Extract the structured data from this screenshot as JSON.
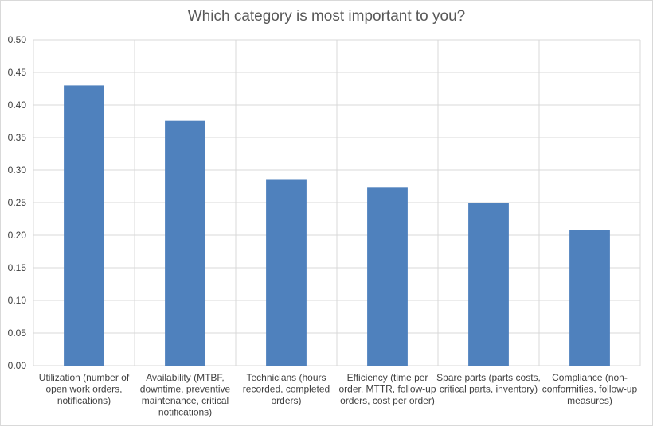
{
  "chart_data": {
    "type": "bar",
    "title": "Which category is most important to you?",
    "categories": [
      [
        "Utilization (number of",
        "open work orders,",
        "notifications)"
      ],
      [
        "Availability (MTBF,",
        "downtime, preventive",
        "maintenance, critical",
        "notifications)"
      ],
      [
        "Technicians (hours",
        "recorded, completed",
        "orders)"
      ],
      [
        "Efficiency (time per",
        "order, MTTR, follow-up",
        "orders, cost per order)"
      ],
      [
        "Spare parts (parts costs,",
        "critical parts, inventory)"
      ],
      [
        "Compliance (non-",
        "conformities, follow-up",
        "measures)"
      ]
    ],
    "values": [
      0.43,
      0.376,
      0.286,
      0.274,
      0.25,
      0.208
    ],
    "ylim": [
      0,
      0.5
    ],
    "yticks": [
      "0.00",
      "0.05",
      "0.10",
      "0.15",
      "0.20",
      "0.25",
      "0.30",
      "0.35",
      "0.40",
      "0.45",
      "0.50"
    ],
    "xlabel": "",
    "ylabel": "",
    "grid": true,
    "legend": "none",
    "bar_color": "#4f81bd",
    "grid_color": "#d9d9d9"
  }
}
